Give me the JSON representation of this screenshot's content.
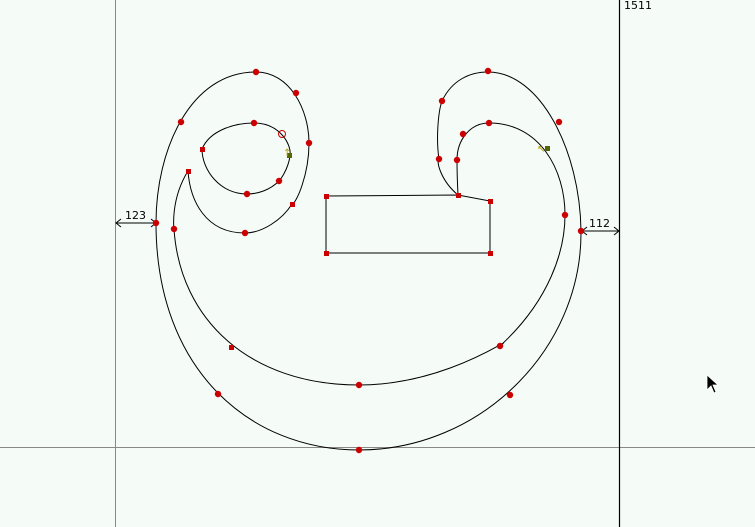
{
  "canvas": {
    "background": "#f5fcf8",
    "guide_color": "#888888",
    "advance_line_color": "#000000",
    "curve_color": "#000000",
    "point_color": "#cc0000",
    "control_color": "#556600"
  },
  "advance_width_label": "1511",
  "left_bearing_label": "123",
  "right_bearing_label": "112",
  "cursor": "arrow-cursor"
}
